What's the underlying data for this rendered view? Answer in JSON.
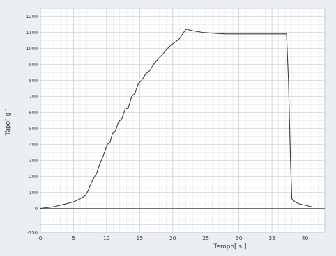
{
  "chart_data": {
    "type": "line",
    "xlabel": "Tempo[ s ]",
    "ylabel": "Tapo[ g ]",
    "xlim": [
      0,
      43
    ],
    "ylim": [
      -150,
      1250
    ],
    "grid": true,
    "x_ticks": [
      0,
      5,
      10,
      15,
      20,
      25,
      30,
      35,
      40
    ],
    "y_ticks": [
      -150,
      -100,
      0,
      100,
      200,
      250,
      300,
      350,
      400,
      450,
      500,
      550,
      600,
      650,
      700,
      750,
      800,
      850,
      900,
      950,
      1000,
      1050,
      1100,
      1150,
      1200,
      1250
    ],
    "y_tick_labels_shown": [
      -150,
      0,
      100,
      200,
      300,
      400,
      500,
      600,
      700,
      800,
      900,
      1000,
      1100,
      1200
    ],
    "series": [
      {
        "color": "#3a3a3a",
        "x": [
          0.0,
          2.0,
          3.0,
          4.0,
          5.0,
          6.0,
          6.8,
          7.2,
          7.8,
          8.5,
          9.0,
          9.6,
          10.1,
          10.5,
          10.9,
          11.3,
          11.8,
          12.3,
          12.8,
          13.3,
          13.8,
          14.3,
          14.8,
          15.3,
          15.9,
          16.5,
          17.1,
          17.7,
          18.4,
          19.0,
          19.7,
          20.4,
          21.0,
          21.5,
          22.0,
          23.0,
          24.5,
          26.0,
          27.0,
          28.0,
          29.5,
          31.0,
          33.0,
          35.0,
          36.5,
          37.2,
          37.5,
          37.8,
          38.0,
          38.5,
          39.0,
          40.0,
          41.0
        ],
        "y": [
          0,
          10,
          20,
          30,
          40,
          60,
          80,
          110,
          170,
          220,
          280,
          340,
          400,
          410,
          470,
          480,
          540,
          560,
          620,
          630,
          700,
          720,
          780,
          800,
          840,
          860,
          900,
          930,
          960,
          990,
          1020,
          1040,
          1060,
          1090,
          1120,
          1110,
          1100,
          1095,
          1092,
          1090,
          1090,
          1090,
          1090,
          1090,
          1090,
          1090,
          800,
          300,
          60,
          40,
          30,
          20,
          10
        ]
      }
    ]
  }
}
